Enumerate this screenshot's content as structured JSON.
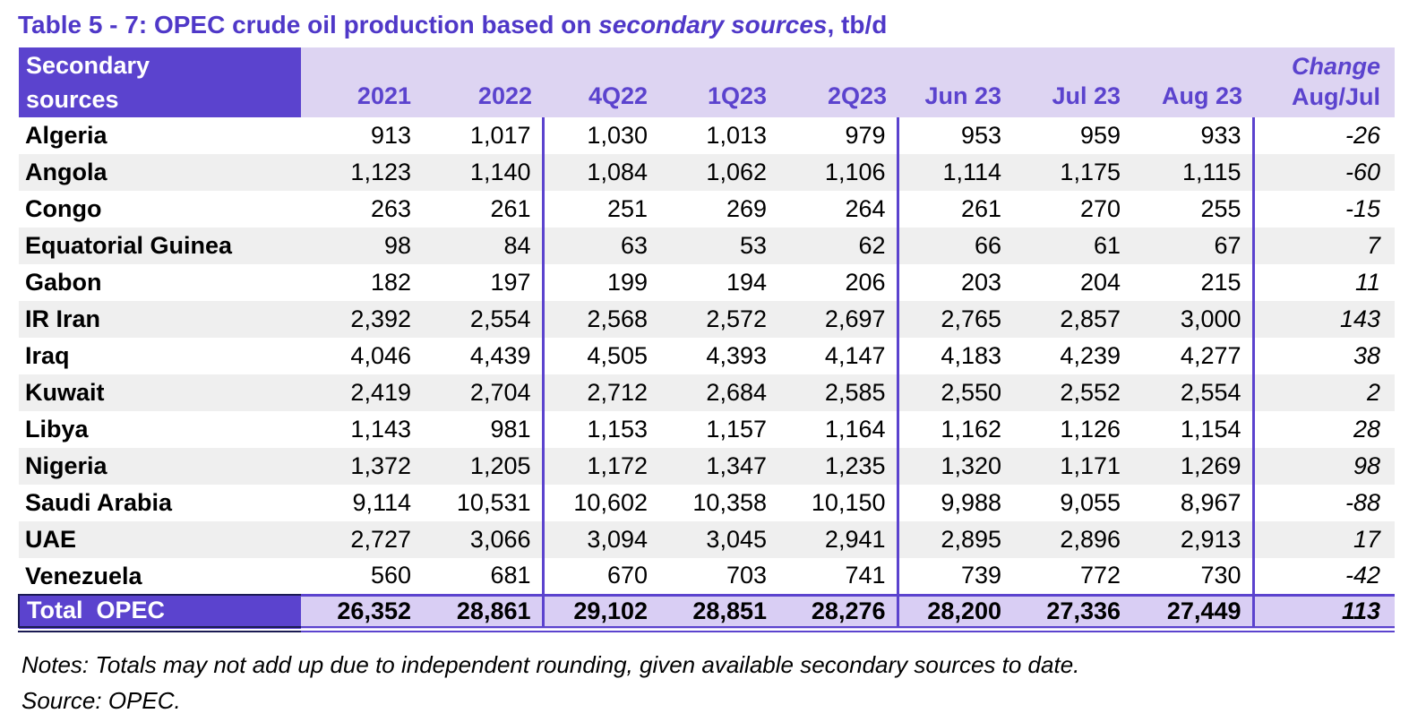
{
  "title": {
    "prefix": "Table 5 - 7: OPEC crude oil production based on ",
    "emphasis": "secondary sources",
    "suffix": ", tb/d"
  },
  "table": {
    "header": {
      "label_line1": "Secondary",
      "label_line2": "sources",
      "columns": [
        "2021",
        "2022",
        "4Q22",
        "1Q23",
        "2Q23",
        "Jun 23",
        "Jul 23",
        "Aug 23"
      ],
      "change_line1": "Change",
      "change_line2": "Aug/Jul"
    },
    "rows": [
      {
        "country": "Algeria",
        "values": [
          "913",
          "1,017",
          "1,030",
          "1,013",
          "979",
          "953",
          "959",
          "933"
        ],
        "change": "-26"
      },
      {
        "country": "Angola",
        "values": [
          "1,123",
          "1,140",
          "1,084",
          "1,062",
          "1,106",
          "1,114",
          "1,175",
          "1,115"
        ],
        "change": "-60"
      },
      {
        "country": "Congo",
        "values": [
          "263",
          "261",
          "251",
          "269",
          "264",
          "261",
          "270",
          "255"
        ],
        "change": "-15"
      },
      {
        "country": "Equatorial Guinea",
        "values": [
          "98",
          "84",
          "63",
          "53",
          "62",
          "66",
          "61",
          "67"
        ],
        "change": "7"
      },
      {
        "country": "Gabon",
        "values": [
          "182",
          "197",
          "199",
          "194",
          "206",
          "203",
          "204",
          "215"
        ],
        "change": "11"
      },
      {
        "country": "IR Iran",
        "values": [
          "2,392",
          "2,554",
          "2,568",
          "2,572",
          "2,697",
          "2,765",
          "2,857",
          "3,000"
        ],
        "change": "143"
      },
      {
        "country": "Iraq",
        "values": [
          "4,046",
          "4,439",
          "4,505",
          "4,393",
          "4,147",
          "4,183",
          "4,239",
          "4,277"
        ],
        "change": "38"
      },
      {
        "country": "Kuwait",
        "values": [
          "2,419",
          "2,704",
          "2,712",
          "2,684",
          "2,585",
          "2,550",
          "2,552",
          "2,554"
        ],
        "change": "2"
      },
      {
        "country": "Libya",
        "values": [
          "1,143",
          "981",
          "1,153",
          "1,157",
          "1,164",
          "1,162",
          "1,126",
          "1,154"
        ],
        "change": "28"
      },
      {
        "country": "Nigeria",
        "values": [
          "1,372",
          "1,205",
          "1,172",
          "1,347",
          "1,235",
          "1,320",
          "1,171",
          "1,269"
        ],
        "change": "98"
      },
      {
        "country": "Saudi Arabia",
        "values": [
          "9,114",
          "10,531",
          "10,602",
          "10,358",
          "10,150",
          "9,988",
          "9,055",
          "8,967"
        ],
        "change": "-88"
      },
      {
        "country": "UAE",
        "values": [
          "2,727",
          "3,066",
          "3,094",
          "3,045",
          "2,941",
          "2,895",
          "2,896",
          "2,913"
        ],
        "change": "17"
      },
      {
        "country": "Venezuela",
        "values": [
          "560",
          "681",
          "670",
          "703",
          "741",
          "739",
          "772",
          "730"
        ],
        "change": "-42"
      }
    ],
    "total": {
      "label": "Total  OPEC",
      "values": [
        "26,352",
        "28,861",
        "29,102",
        "28,851",
        "28,276",
        "28,200",
        "27,336",
        "27,449"
      ],
      "change": "113"
    }
  },
  "notes": "Notes: Totals may not add up due to independent rounding, given available secondary sources to date.",
  "source": "Source: OPEC.",
  "colors": {
    "accent_purple": "#5B43CE",
    "title_purple": "#4F38C8",
    "header_lavender": "#DDD4F2",
    "total_lavender": "#D9CEF4",
    "row_stripe_gray": "#EFEFEF",
    "total_shadow_navy": "#1A1A52"
  }
}
